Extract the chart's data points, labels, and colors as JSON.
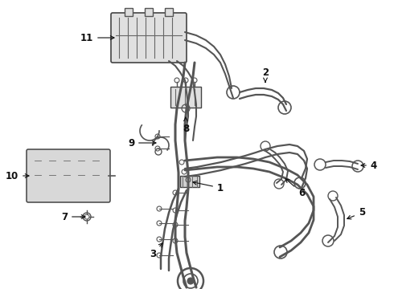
{
  "bg_color": "#ffffff",
  "lc": "#555555",
  "tc": "#111111",
  "figsize": [
    4.9,
    3.6
  ],
  "dpi": 100
}
